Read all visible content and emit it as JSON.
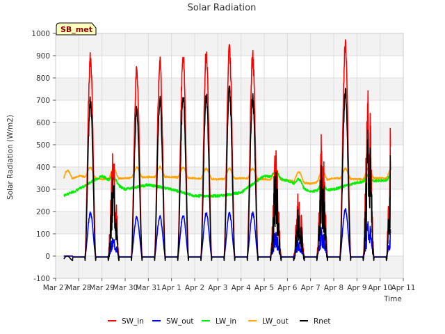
{
  "chart_data": {
    "type": "line",
    "title": "Solar Radiation",
    "xlabel": "Time",
    "ylabel": "Solar Radiation (W/m2)",
    "badge": "SB_met",
    "x_ticks": [
      "Mar 27",
      "Mar 28",
      "Mar 29",
      "Mar 30",
      "Mar 31",
      "Apr 1",
      "Apr 2",
      "Apr 3",
      "Apr 4",
      "Apr 5",
      "Apr 6",
      "Apr 7",
      "Apr 8",
      "Apr 9",
      "Apr 10",
      "Apr 11"
    ],
    "xlim": [
      "2025-03-27",
      "2025-04-11"
    ],
    "ylim": [
      -100,
      1000
    ],
    "y_ticks": [
      -100,
      0,
      100,
      200,
      300,
      400,
      500,
      600,
      700,
      800,
      900,
      1000
    ],
    "grid": true,
    "legend_position": "bottom",
    "daily_peaks": {
      "dates": [
        "Mar 28",
        "Mar 29",
        "Mar 30",
        "Mar 31",
        "Apr 1",
        "Apr 2",
        "Apr 3",
        "Apr 4",
        "Apr 5",
        "Apr 6",
        "Apr 7",
        "Apr 8",
        "Apr 9",
        "Apr 10"
      ],
      "SW_in": [
        920,
        510,
        860,
        910,
        940,
        945,
        970,
        930,
        490,
        320,
        600,
        980,
        840,
        670
      ],
      "SW_out": [
        200,
        90,
        180,
        185,
        190,
        200,
        200,
        200,
        110,
        80,
        140,
        215,
        175,
        140
      ],
      "Rnet": [
        720,
        390,
        680,
        730,
        750,
        750,
        780,
        735,
        390,
        240,
        450,
        760,
        640,
        530
      ]
    },
    "LW_in": {
      "x": [
        "Mar 27",
        "Mar 28",
        "Mar 29",
        "Mar 30",
        "Mar 31",
        "Apr 1",
        "Apr 2",
        "Apr 3",
        "Apr 4",
        "Apr 5",
        "Apr 6",
        "Apr 7",
        "Apr 8",
        "Apr 9",
        "Apr 10"
      ],
      "values": [
        255,
        300,
        360,
        300,
        320,
        300,
        270,
        270,
        285,
        360,
        340,
        290,
        300,
        330,
        340
      ]
    },
    "LW_out": {
      "x": [
        "Mar 27",
        "Mar 28",
        "Mar 29",
        "Mar 30",
        "Mar 31",
        "Apr 1",
        "Apr 2",
        "Apr 3",
        "Apr 4",
        "Apr 5",
        "Apr 6",
        "Apr 7",
        "Apr 8",
        "Apr 9",
        "Apr 10"
      ],
      "values": [
        340,
        380,
        365,
        370,
        375,
        375,
        370,
        365,
        370,
        365,
        360,
        345,
        370,
        365,
        370
      ]
    },
    "series": [
      {
        "name": "SW_in",
        "color": "#ff0000"
      },
      {
        "name": "SW_out",
        "color": "#0000ff"
      },
      {
        "name": "LW_in",
        "color": "#00ee00"
      },
      {
        "name": "LW_out",
        "color": "#ffa500"
      },
      {
        "name": "Rnet",
        "color": "#000000"
      }
    ]
  }
}
